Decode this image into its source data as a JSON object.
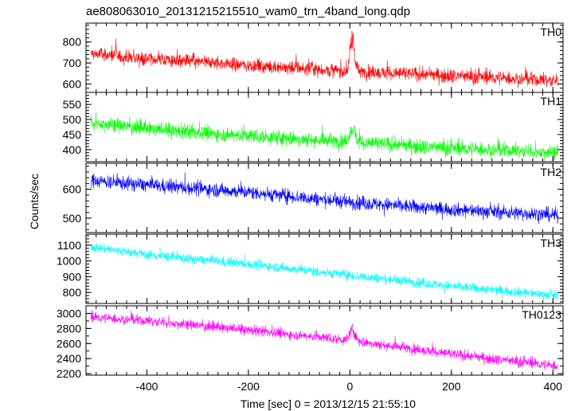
{
  "chart_data": {
    "type": "line",
    "title": "ae808063010_20131215215510_wam0_trn_4band_long.qdp",
    "xlabel": "Time [sec] 0 = 2013/12/15 21:55:10",
    "ylabel": "Counts/sec",
    "xlim": [
      -520,
      420
    ],
    "x_ticks": [
      -400,
      -200,
      0,
      200,
      400
    ],
    "x_minor_step": 20,
    "panels": [
      {
        "name": "TH0",
        "color": "#ff0000",
        "ylim": [
          560,
          890
        ],
        "y_ticks": [
          600,
          700,
          800
        ],
        "y_minor_step": 20,
        "trend": [
          [
            -510,
            745
          ],
          [
            -400,
            720
          ],
          [
            -200,
            690
          ],
          [
            0,
            660
          ],
          [
            200,
            640
          ],
          [
            410,
            615
          ]
        ],
        "noise": 30,
        "peak": {
          "x": 5,
          "height": 160,
          "width": 6
        }
      },
      {
        "name": "TH1",
        "color": "#00ff00",
        "ylim": [
          360,
          590
        ],
        "y_ticks": [
          400,
          450,
          500,
          550
        ],
        "y_minor_step": 10,
        "trend": [
          [
            -510,
            490
          ],
          [
            -400,
            470
          ],
          [
            -200,
            445
          ],
          [
            0,
            425
          ],
          [
            200,
            405
          ],
          [
            410,
            390
          ]
        ],
        "noise": 22,
        "peak": {
          "x": 5,
          "height": 45,
          "width": 8
        }
      },
      {
        "name": "TH2",
        "color": "#0000ff",
        "ylim": [
          450,
          690
        ],
        "y_ticks": [
          500,
          600
        ],
        "y_minor_step": 20,
        "trend": [
          [
            -510,
            630
          ],
          [
            -400,
            615
          ],
          [
            -200,
            590
          ],
          [
            0,
            555
          ],
          [
            200,
            530
          ],
          [
            410,
            510
          ]
        ],
        "noise": 22,
        "peak": null
      },
      {
        "name": "TH3",
        "color": "#00ffff",
        "ylim": [
          730,
          1170
        ],
        "y_ticks": [
          800,
          900,
          1000,
          1100
        ],
        "y_minor_step": 20,
        "trend": [
          [
            -510,
            1090
          ],
          [
            -400,
            1040
          ],
          [
            -200,
            980
          ],
          [
            0,
            910
          ],
          [
            200,
            840
          ],
          [
            410,
            780
          ]
        ],
        "noise": 28,
        "peak": null
      },
      {
        "name": "TH0123",
        "color": "#ff00ff",
        "ylim": [
          2180,
          3100
        ],
        "y_ticks": [
          2200,
          2400,
          2600,
          2800,
          3000
        ],
        "y_minor_step": 100,
        "trend": [
          [
            -510,
            2950
          ],
          [
            -400,
            2900
          ],
          [
            -200,
            2780
          ],
          [
            0,
            2640
          ],
          [
            200,
            2460
          ],
          [
            410,
            2300
          ]
        ],
        "noise": 60,
        "peak": {
          "x": 5,
          "height": 170,
          "width": 7
        }
      }
    ]
  }
}
